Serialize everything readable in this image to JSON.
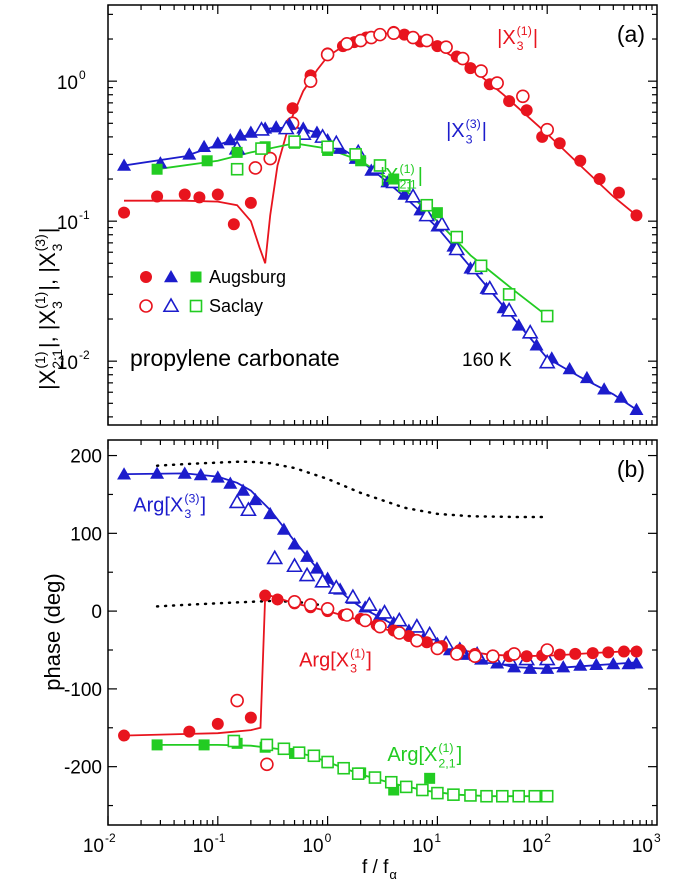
{
  "colors": {
    "red": "#e8141e",
    "blue": "#1c1ccc",
    "green": "#22cc22",
    "black": "#000000"
  },
  "panels": {
    "a": {
      "tag": "(a)",
      "ylabel_parts": [
        "|X",
        "(1)",
        "2;1",
        "|, |X",
        "(1)",
        "3",
        "|, |X",
        "(3)",
        "3",
        "|"
      ],
      "material": "propylene carbonate",
      "temperature": "160 K",
      "legend": {
        "row1": "Augsburg",
        "row2": "Saclay"
      }
    },
    "b": {
      "tag": "(b)",
      "ylabel": "phase (deg)"
    }
  },
  "xaxis": {
    "label_parts": [
      "f / f",
      "α"
    ],
    "ticks": [
      {
        "base": "10",
        "exp": "-2",
        "value": 0.01
      },
      {
        "base": "10",
        "exp": "-1",
        "value": 0.1
      },
      {
        "base": "10",
        "exp": "0",
        "value": 1
      },
      {
        "base": "10",
        "exp": "1",
        "value": 10
      },
      {
        "base": "10",
        "exp": "2",
        "value": 100
      },
      {
        "base": "10",
        "exp": "3",
        "value": 1000
      }
    ]
  },
  "chart_data": [
    {
      "panel": "a",
      "type": "scatter",
      "xscale": "log",
      "yscale": "log",
      "xlim": [
        0.01,
        1000
      ],
      "ylim": [
        0.0035,
        3.5
      ],
      "yticks": [
        {
          "base": "10",
          "exp": "-2",
          "value": 0.01
        },
        {
          "base": "10",
          "exp": "-1",
          "value": 0.1
        },
        {
          "base": "10",
          "exp": "0",
          "value": 1
        }
      ],
      "series": [
        {
          "name": "|X3(1)| Augsburg",
          "color": "red",
          "marker": "circle-filled",
          "x": [
            0.014,
            0.028,
            0.05,
            0.068,
            0.1,
            0.14,
            0.2,
            0.48,
            0.7,
            1.0,
            1.38,
            1.75,
            2.25,
            3.0,
            4.0,
            5.0,
            7.0,
            10,
            15,
            20,
            30,
            45,
            65,
            90,
            130,
            200,
            300,
            450,
            650
          ],
          "y": [
            0.115,
            0.15,
            0.155,
            0.148,
            0.155,
            0.095,
            0.135,
            0.64,
            1.1,
            1.58,
            1.78,
            1.9,
            2.05,
            2.15,
            2.25,
            2.15,
            1.92,
            1.78,
            1.5,
            1.24,
            0.95,
            0.72,
            0.62,
            0.4,
            0.36,
            0.27,
            0.2,
            0.16,
            0.11
          ]
        },
        {
          "name": "|X3(1)| Saclay",
          "color": "red",
          "marker": "circle-open",
          "x": [
            0.22,
            0.3,
            0.48,
            0.7,
            1.0,
            1.5,
            2.0,
            2.5,
            3.0,
            4.0,
            6.0,
            8.0,
            12,
            17,
            25,
            35,
            60,
            100
          ],
          "y": [
            0.24,
            0.28,
            0.5,
            1.0,
            1.55,
            1.85,
            1.95,
            2.05,
            2.15,
            2.2,
            2.05,
            1.95,
            1.75,
            1.45,
            1.18,
            0.97,
            0.78,
            0.45
          ]
        },
        {
          "name": "|X3(3)| Augsburg",
          "color": "blue",
          "marker": "triangle-filled",
          "x": [
            0.014,
            0.03,
            0.055,
            0.075,
            0.1,
            0.13,
            0.16,
            0.2,
            0.27,
            0.34,
            0.45,
            0.6,
            0.8,
            1.0,
            1.3,
            1.8,
            2.5,
            3.5,
            5.0,
            7.0,
            10,
            14,
            20,
            28,
            40,
            55,
            80,
            110,
            160,
            230,
            330,
            470,
            650
          ],
          "y": [
            0.25,
            0.26,
            0.3,
            0.34,
            0.36,
            0.38,
            0.41,
            0.43,
            0.46,
            0.47,
            0.49,
            0.46,
            0.43,
            0.38,
            0.33,
            0.28,
            0.23,
            0.19,
            0.155,
            0.12,
            0.092,
            0.066,
            0.046,
            0.033,
            0.024,
            0.018,
            0.013,
            0.0105,
            0.0088,
            0.0076,
            0.0063,
            0.0055,
            0.0045
          ]
        },
        {
          "name": "|X3(3)| Saclay",
          "color": "blue",
          "marker": "triangle-open",
          "x": [
            0.15,
            0.25,
            0.42,
            0.6,
            0.9,
            1.2,
            1.9,
            2.8,
            4.0,
            6.0,
            8.0,
            11,
            15,
            22,
            30,
            45,
            70,
            100
          ],
          "y": [
            0.33,
            0.45,
            0.46,
            0.42,
            0.4,
            0.36,
            0.31,
            0.24,
            0.19,
            0.15,
            0.11,
            0.095,
            0.063,
            0.046,
            0.033,
            0.023,
            0.016,
            0.0098
          ]
        },
        {
          "name": "|X2;1(1)| Augsburg",
          "color": "green",
          "marker": "square-filled",
          "x": [
            0.028,
            0.08,
            0.15,
            0.27,
            0.5,
            1.0,
            2.0,
            4.0,
            10
          ],
          "y": [
            0.235,
            0.27,
            0.31,
            0.34,
            0.36,
            0.32,
            0.27,
            0.2,
            0.115
          ]
        },
        {
          "name": "|X2;1(1)| Saclay",
          "color": "green",
          "marker": "square-open",
          "x": [
            0.15,
            0.25,
            0.5,
            1.0,
            1.8,
            3.0,
            5.0,
            8.0,
            15,
            25,
            45,
            100
          ],
          "y": [
            0.235,
            0.33,
            0.37,
            0.34,
            0.3,
            0.25,
            0.18,
            0.13,
            0.077,
            0.048,
            0.03,
            0.021
          ]
        }
      ],
      "fits": [
        {
          "color": "red",
          "x": [
            0.014,
            0.05,
            0.1,
            0.15,
            0.2,
            0.24,
            0.27,
            0.3,
            0.35,
            0.45,
            0.6,
            0.8,
            1.0,
            1.5,
            2.0,
            3.0,
            4.0,
            6.0,
            10,
            20,
            40,
            100,
            200,
            400,
            650
          ],
          "y": [
            0.14,
            0.14,
            0.138,
            0.13,
            0.1,
            0.065,
            0.05,
            0.11,
            0.25,
            0.5,
            0.85,
            1.2,
            1.5,
            1.85,
            2.05,
            2.2,
            2.18,
            2.05,
            1.75,
            1.25,
            0.8,
            0.42,
            0.25,
            0.15,
            0.11
          ]
        },
        {
          "color": "blue",
          "x": [
            0.014,
            0.05,
            0.1,
            0.2,
            0.3,
            0.5,
            0.8,
            1.2,
            2.0,
            3.0,
            5.0,
            10,
            20,
            50,
            100,
            200,
            400,
            650
          ],
          "y": [
            0.25,
            0.29,
            0.35,
            0.42,
            0.46,
            0.47,
            0.43,
            0.35,
            0.27,
            0.21,
            0.15,
            0.09,
            0.047,
            0.02,
            0.0105,
            0.0077,
            0.0058,
            0.0045
          ]
        },
        {
          "color": "green",
          "x": [
            0.028,
            0.1,
            0.2,
            0.5,
            1.0,
            2.0,
            5.0,
            10,
            20,
            50,
            100
          ],
          "y": [
            0.235,
            0.27,
            0.31,
            0.36,
            0.33,
            0.27,
            0.17,
            0.1,
            0.057,
            0.032,
            0.021
          ]
        }
      ],
      "annotations": [
        {
          "parts": [
            "|X",
            "(1)",
            "3",
            "|"
          ],
          "color": "red",
          "x": 35,
          "y": 1.85
        },
        {
          "parts": [
            "|X",
            "(3)",
            "3",
            "|"
          ],
          "color": "blue",
          "x": 12,
          "y": 0.4
        },
        {
          "parts": [
            "|X",
            "(1)",
            "2;1",
            "|"
          ],
          "color": "green",
          "x": 3.0,
          "y": 0.19
        }
      ]
    },
    {
      "panel": "b",
      "type": "scatter",
      "xscale": "log",
      "yscale": "linear",
      "xlim": [
        0.01,
        1000
      ],
      "ylim": [
        -275,
        220
      ],
      "yticks": [
        -200,
        -100,
        0,
        100,
        200
      ],
      "series": [
        {
          "name": "Arg[X3(3)] Augsburg",
          "color": "blue",
          "marker": "triangle-filled",
          "x": [
            0.014,
            0.028,
            0.05,
            0.07,
            0.1,
            0.13,
            0.17,
            0.22,
            0.3,
            0.4,
            0.5,
            0.65,
            0.8,
            1.0,
            1.3,
            1.7,
            2.2,
            3.0,
            4.0,
            5.5,
            7.5,
            10,
            13,
            18,
            25,
            35,
            50,
            70,
            100,
            140,
            200,
            280,
            400,
            550,
            650
          ],
          "y": [
            176,
            177,
            177,
            175,
            172,
            164,
            155,
            143,
            125,
            105,
            86,
            70,
            55,
            42,
            28,
            16,
            5,
            -5,
            -15,
            -25,
            -35,
            -42,
            -50,
            -56,
            -62,
            -67,
            -72,
            -74,
            -74,
            -72,
            -70,
            -69,
            -68,
            -68,
            -67
          ]
        },
        {
          "name": "Arg[X3(3)] Saclay",
          "color": "blue",
          "marker": "triangle-open",
          "x": [
            0.15,
            0.19,
            0.33,
            0.5,
            0.65,
            0.9,
            1.2,
            1.7,
            2.4,
            3.3,
            4.5,
            6.5,
            8.5,
            12,
            16,
            23,
            32,
            45,
            65,
            100
          ],
          "y": [
            140,
            130,
            68,
            58,
            46,
            38,
            30,
            18,
            8,
            -2,
            -12,
            -20,
            -30,
            -42,
            -50,
            -56,
            -60,
            -62,
            -62,
            -62
          ]
        },
        {
          "name": "Arg[X3(1)] Augsburg",
          "color": "red",
          "marker": "circle-filled",
          "x": [
            0.014,
            0.055,
            0.1,
            0.2,
            0.27,
            0.35,
            0.5,
            0.7,
            1.0,
            1.4,
            2.0,
            2.8,
            4.0,
            5.5,
            8.0,
            11,
            16,
            22,
            32,
            45,
            65,
            90,
            130,
            180,
            260,
            360,
            500,
            650
          ],
          "y": [
            -160,
            -155,
            -145,
            -137,
            20,
            15,
            10,
            5,
            0,
            -5,
            -10,
            -18,
            -25,
            -32,
            -40,
            -45,
            -50,
            -55,
            -57,
            -58,
            -58,
            -57,
            -56,
            -55,
            -54,
            -53,
            -52,
            -52
          ]
        },
        {
          "name": "Arg[X3(1)] Saclay",
          "color": "red",
          "marker": "circle-open",
          "x": [
            0.15,
            0.28,
            0.5,
            0.7,
            1.0,
            1.5,
            2.2,
            3.0,
            4.5,
            6.5,
            10,
            15,
            22,
            32,
            50,
            100
          ],
          "y": [
            -115,
            -197,
            12,
            8,
            3,
            -5,
            -12,
            -20,
            -28,
            -38,
            -48,
            -55,
            -58,
            -58,
            -55,
            -50
          ]
        },
        {
          "name": "Arg[X2;1(1)] Augsburg",
          "color": "green",
          "marker": "square-filled",
          "x": [
            0.028,
            0.075,
            0.15,
            0.27,
            0.5,
            1.0,
            2.0,
            4.0,
            8.5
          ],
          "y": [
            -172,
            -172,
            -170,
            -175,
            -183,
            -195,
            -208,
            -230,
            -215
          ]
        },
        {
          "name": "Arg[X2;1(1)] Saclay",
          "color": "green",
          "marker": "square-open",
          "x": [
            0.14,
            0.28,
            0.4,
            0.55,
            0.75,
            1.0,
            1.4,
            1.9,
            2.7,
            3.8,
            5.2,
            7.3,
            10,
            14,
            20,
            28,
            39,
            55,
            77,
            100
          ],
          "y": [
            -167,
            -172,
            -177,
            -182,
            -186,
            -194,
            -202,
            -209,
            -214,
            -220,
            -226,
            -230,
            -234,
            -236,
            -237,
            -238,
            -238,
            -238,
            -238,
            -238
          ]
        }
      ],
      "fits": [
        {
          "color": "blue",
          "x": [
            0.014,
            0.05,
            0.1,
            0.15,
            0.2,
            0.3,
            0.5,
            0.8,
            1.0,
            1.5,
            2.0,
            3.0,
            5.0,
            10,
            20,
            50,
            100,
            200,
            400,
            650
          ],
          "y": [
            176,
            177,
            173,
            165,
            155,
            130,
            90,
            55,
            40,
            18,
            5,
            -8,
            -25,
            -45,
            -60,
            -72,
            -74,
            -71,
            -68,
            -66
          ]
        },
        {
          "color": "red",
          "x": [
            0.014,
            0.05,
            0.1,
            0.2,
            0.245,
            0.27,
            0.3,
            0.5,
            1.0,
            2.0,
            4.0,
            8.0,
            16,
            30,
            60,
            120,
            250,
            650
          ],
          "y": [
            -160,
            -158,
            -157,
            -153,
            -150,
            20,
            20,
            10,
            0,
            -12,
            -27,
            -40,
            -50,
            -56,
            -58,
            -57,
            -54,
            -51
          ]
        },
        {
          "color": "green",
          "x": [
            0.028,
            0.1,
            0.2,
            0.4,
            0.7,
            1.0,
            2.0,
            4.0,
            8.0,
            15,
            30,
            60,
            100
          ],
          "y": [
            -172,
            -172,
            -173,
            -178,
            -186,
            -194,
            -210,
            -222,
            -231,
            -236,
            -238,
            -238,
            -238
          ]
        }
      ],
      "dotted_curves": [
        {
          "x": [
            0.028,
            0.05,
            0.1,
            0.15,
            0.2,
            0.3,
            0.5,
            1.0,
            2.0,
            5.0,
            10,
            20,
            50,
            100
          ],
          "y": [
            187,
            189,
            191,
            192,
            192,
            190,
            184,
            170,
            152,
            133,
            125,
            122,
            121,
            121
          ]
        },
        {
          "x": [
            0.028,
            0.05,
            0.1,
            0.2,
            0.3,
            0.5,
            0.7,
            1.0
          ],
          "y": [
            6,
            8,
            10,
            12,
            13,
            12,
            10,
            6
          ]
        }
      ],
      "annotations": [
        {
          "parts": [
            "Arg[X",
            "(3)",
            "3",
            "]"
          ],
          "color": "blue",
          "x": 0.017,
          "y": 128
        },
        {
          "parts": [
            "Arg[X",
            "(1)",
            "3",
            "]"
          ],
          "color": "red",
          "x": 0.55,
          "y": -71
        },
        {
          "parts": [
            "Arg[X",
            "(1)",
            "2,1",
            "]"
          ],
          "color": "green",
          "x": 3.5,
          "y": -193
        }
      ]
    }
  ]
}
